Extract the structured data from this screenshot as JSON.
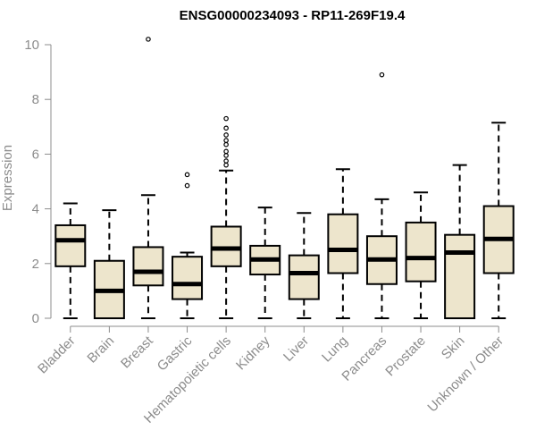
{
  "chart_data": {
    "type": "box",
    "title": "ENSG00000234093 - RP11-269F19.4",
    "ylabel": "Expression",
    "xlabel": "",
    "ylim": [
      0,
      10.4
    ],
    "yticks": [
      0,
      2,
      4,
      6,
      8,
      10
    ],
    "grid": false,
    "legend": "none",
    "colors": {
      "box_fill": "#ede5cc",
      "box_stroke": "#000000",
      "median": "#000000",
      "axis": "#8c8c8c"
    },
    "categories": [
      "Bladder",
      "Brain",
      "Breast",
      "Gastric",
      "Hematopoietic cells",
      "Kidney",
      "Liver",
      "Lung",
      "Pancreas",
      "Prostate",
      "Skin",
      "Unknown / Other"
    ],
    "boxes": [
      {
        "name": "Bladder",
        "whisker_low": 0,
        "q1": 1.9,
        "median": 2.85,
        "q3": 3.4,
        "whisker_high": 4.2,
        "outliers": []
      },
      {
        "name": "Brain",
        "whisker_low": 0,
        "q1": 0,
        "median": 1.0,
        "q3": 2.1,
        "whisker_high": 3.95,
        "outliers": []
      },
      {
        "name": "Breast",
        "whisker_low": 0,
        "q1": 1.2,
        "median": 1.7,
        "q3": 2.6,
        "whisker_high": 4.5,
        "outliers": [
          10.2
        ]
      },
      {
        "name": "Gastric",
        "whisker_low": 0,
        "q1": 0.7,
        "median": 1.25,
        "q3": 2.25,
        "whisker_high": 2.4,
        "outliers": [
          4.85,
          5.25
        ]
      },
      {
        "name": "Hematopoietic cells",
        "whisker_low": 0,
        "q1": 1.9,
        "median": 2.55,
        "q3": 3.35,
        "whisker_high": 5.4,
        "outliers": [
          5.6,
          5.75,
          5.95,
          6.1,
          6.35,
          6.5,
          6.7,
          6.95,
          7.3
        ]
      },
      {
        "name": "Kidney",
        "whisker_low": 0,
        "q1": 1.6,
        "median": 2.15,
        "q3": 2.65,
        "whisker_high": 4.05,
        "outliers": []
      },
      {
        "name": "Liver",
        "whisker_low": 0,
        "q1": 0.7,
        "median": 1.65,
        "q3": 2.3,
        "whisker_high": 3.85,
        "outliers": []
      },
      {
        "name": "Lung",
        "whisker_low": 0,
        "q1": 1.65,
        "median": 2.5,
        "q3": 3.8,
        "whisker_high": 5.45,
        "outliers": []
      },
      {
        "name": "Pancreas",
        "whisker_low": 0,
        "q1": 1.25,
        "median": 2.15,
        "q3": 3.0,
        "whisker_high": 4.35,
        "outliers": [
          8.9
        ]
      },
      {
        "name": "Prostate",
        "whisker_low": 0,
        "q1": 1.35,
        "median": 2.2,
        "q3": 3.5,
        "whisker_high": 4.6,
        "outliers": []
      },
      {
        "name": "Skin",
        "whisker_low": 0,
        "q1": 0,
        "median": 2.4,
        "q3": 3.05,
        "whisker_high": 5.6,
        "outliers": []
      },
      {
        "name": "Unknown / Other",
        "whisker_low": 0,
        "q1": 1.65,
        "median": 2.9,
        "q3": 4.1,
        "whisker_high": 7.15,
        "outliers": []
      }
    ]
  }
}
